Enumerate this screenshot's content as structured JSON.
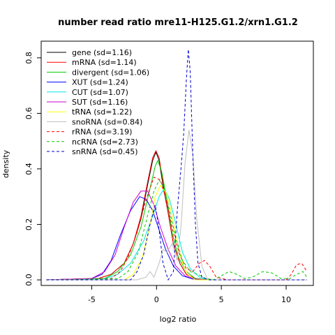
{
  "chart_data": {
    "type": "line",
    "title": "number read ratio mre11-H125.G1.2/xrn1.G1.2",
    "xlabel": "log2 ratio",
    "ylabel": "density",
    "xlim": [
      -8.9,
      12.1
    ],
    "ylim": [
      -0.02,
      0.86
    ],
    "x_ticks": [
      -5,
      0,
      5,
      10
    ],
    "x_tick_labels": [
      "-5",
      "0",
      "5",
      "10"
    ],
    "y_ticks": [
      0.0,
      0.2,
      0.4,
      0.6,
      0.8
    ],
    "y_tick_labels": [
      "0.0",
      "0.2",
      "0.4",
      "0.6",
      "0.8"
    ],
    "grid": false,
    "legend_position": "top-left",
    "series": [
      {
        "name": "gene (sd=1.16)",
        "color": "#000000",
        "dash": "solid",
        "points": [
          [
            -8.5,
            0
          ],
          [
            -4.5,
            0.005
          ],
          [
            -3.5,
            0.02
          ],
          [
            -2.5,
            0.06
          ],
          [
            -1.8,
            0.13
          ],
          [
            -1.2,
            0.22
          ],
          [
            -0.7,
            0.34
          ],
          [
            -0.3,
            0.43
          ],
          [
            -0.05,
            0.46
          ],
          [
            0.2,
            0.43
          ],
          [
            0.5,
            0.34
          ],
          [
            0.9,
            0.24
          ],
          [
            1.3,
            0.13
          ],
          [
            1.8,
            0.06
          ],
          [
            2.3,
            0.02
          ],
          [
            3.0,
            0.005
          ],
          [
            4,
            0
          ],
          [
            11.6,
            0
          ]
        ]
      },
      {
        "name": "mRNA (sd=1.14)",
        "color": "#ff0000",
        "dash": "solid",
        "points": [
          [
            -8.5,
            0
          ],
          [
            -4.5,
            0.005
          ],
          [
            -3.5,
            0.02
          ],
          [
            -2.5,
            0.06
          ],
          [
            -1.8,
            0.13
          ],
          [
            -1.2,
            0.23
          ],
          [
            -0.7,
            0.35
          ],
          [
            -0.3,
            0.44
          ],
          [
            -0.05,
            0.465
          ],
          [
            0.2,
            0.44
          ],
          [
            0.5,
            0.35
          ],
          [
            0.9,
            0.24
          ],
          [
            1.3,
            0.13
          ],
          [
            1.8,
            0.06
          ],
          [
            2.3,
            0.02
          ],
          [
            3.0,
            0.005
          ],
          [
            4,
            0
          ],
          [
            11.6,
            0
          ]
        ]
      },
      {
        "name": "divergent (sd=1.06)",
        "color": "#00cc00",
        "dash": "solid",
        "points": [
          [
            -8.5,
            0
          ],
          [
            -4.0,
            0.005
          ],
          [
            -3.0,
            0.03
          ],
          [
            -2.0,
            0.09
          ],
          [
            -1.2,
            0.19
          ],
          [
            -0.5,
            0.33
          ],
          [
            -0.1,
            0.41
          ],
          [
            0.1,
            0.43
          ],
          [
            0.4,
            0.39
          ],
          [
            0.8,
            0.29
          ],
          [
            1.2,
            0.17
          ],
          [
            1.7,
            0.08
          ],
          [
            2.3,
            0.03
          ],
          [
            3.0,
            0.005
          ],
          [
            4,
            0
          ],
          [
            11.6,
            0
          ]
        ]
      },
      {
        "name": "XUT (sd=1.24)",
        "color": "#0000ff",
        "dash": "solid",
        "points": [
          [
            -8.5,
            0
          ],
          [
            -5.0,
            0.005
          ],
          [
            -4.2,
            0.02
          ],
          [
            -3.5,
            0.07
          ],
          [
            -2.8,
            0.16
          ],
          [
            -2.0,
            0.25
          ],
          [
            -1.3,
            0.3
          ],
          [
            -0.8,
            0.29
          ],
          [
            -0.3,
            0.25
          ],
          [
            0.2,
            0.18
          ],
          [
            0.7,
            0.11
          ],
          [
            1.3,
            0.05
          ],
          [
            2.0,
            0.015
          ],
          [
            2.8,
            0.003
          ],
          [
            4,
            0
          ],
          [
            11.6,
            0
          ]
        ]
      },
      {
        "name": "CUT (sd=1.07)",
        "color": "#00e5e5",
        "dash": "solid",
        "points": [
          [
            -8.5,
            0
          ],
          [
            -4.0,
            0.004
          ],
          [
            -3.0,
            0.02
          ],
          [
            -2.0,
            0.06
          ],
          [
            -1.0,
            0.14
          ],
          [
            -0.3,
            0.23
          ],
          [
            0.2,
            0.3
          ],
          [
            0.6,
            0.33
          ],
          [
            1.0,
            0.29
          ],
          [
            1.5,
            0.2
          ],
          [
            2.0,
            0.1
          ],
          [
            2.6,
            0.04
          ],
          [
            3.3,
            0.01
          ],
          [
            4,
            0
          ],
          [
            11.6,
            0
          ]
        ]
      },
      {
        "name": "SUT (sd=1.16)",
        "color": "#cc00cc",
        "dash": "solid",
        "points": [
          [
            -8.5,
            0
          ],
          [
            -5.0,
            0.005
          ],
          [
            -4.0,
            0.03
          ],
          [
            -3.2,
            0.09
          ],
          [
            -2.5,
            0.19
          ],
          [
            -1.8,
            0.28
          ],
          [
            -1.2,
            0.32
          ],
          [
            -0.7,
            0.32
          ],
          [
            -0.2,
            0.27
          ],
          [
            0.3,
            0.19
          ],
          [
            0.9,
            0.11
          ],
          [
            1.5,
            0.05
          ],
          [
            2.2,
            0.015
          ],
          [
            3.0,
            0.003
          ],
          [
            4,
            0
          ],
          [
            11.6,
            0
          ]
        ]
      },
      {
        "name": "tRNA (sd=1.22)",
        "color": "#ffff00",
        "dash": "solid",
        "points": [
          [
            -8.5,
            0
          ],
          [
            -2.5,
            0.0
          ],
          [
            -1.8,
            0.02
          ],
          [
            -1.1,
            0.08
          ],
          [
            -0.5,
            0.2
          ],
          [
            -0.1,
            0.3
          ],
          [
            0.3,
            0.34
          ],
          [
            0.8,
            0.31
          ],
          [
            1.2,
            0.23
          ],
          [
            1.6,
            0.13
          ],
          [
            2.0,
            0.06
          ],
          [
            2.4,
            0.02
          ],
          [
            3.0,
            0.0
          ],
          [
            11.6,
            0
          ]
        ]
      },
      {
        "name": "snoRNA (sd=0.84)",
        "color": "#bebebe",
        "dash": "solid",
        "points": [
          [
            -8.5,
            0
          ],
          [
            -1.5,
            0.0
          ],
          [
            -0.8,
            0.01
          ],
          [
            -0.5,
            0.03
          ],
          [
            -0.2,
            0.01
          ],
          [
            0.2,
            0.06
          ],
          [
            0.5,
            0.11
          ],
          [
            0.8,
            0.1
          ],
          [
            1.2,
            0.13
          ],
          [
            1.6,
            0.07
          ],
          [
            1.9,
            0.2
          ],
          [
            2.2,
            0.42
          ],
          [
            2.5,
            0.54
          ],
          [
            2.8,
            0.45
          ],
          [
            3.1,
            0.22
          ],
          [
            3.5,
            0.05
          ],
          [
            3.9,
            0.005
          ],
          [
            4.4,
            0
          ],
          [
            11.6,
            0
          ]
        ]
      },
      {
        "name": "rRNA (sd=3.19)",
        "color": "#ff0000",
        "dash": "dashed",
        "points": [
          [
            -8.5,
            0
          ],
          [
            -3.5,
            0.005
          ],
          [
            -2.8,
            0.03
          ],
          [
            -2.2,
            0.08
          ],
          [
            -1.5,
            0.17
          ],
          [
            -0.8,
            0.29
          ],
          [
            -0.2,
            0.37
          ],
          [
            0.3,
            0.36
          ],
          [
            0.8,
            0.28
          ],
          [
            1.3,
            0.17
          ],
          [
            1.8,
            0.09
          ],
          [
            2.3,
            0.04
          ],
          [
            2.8,
            0.03
          ],
          [
            3.3,
            0.06
          ],
          [
            3.7,
            0.07
          ],
          [
            4.1,
            0.05
          ],
          [
            4.6,
            0.01
          ],
          [
            5.5,
            0
          ],
          [
            10.0,
            0
          ],
          [
            10.4,
            0.02
          ],
          [
            10.8,
            0.055
          ],
          [
            11.2,
            0.06
          ],
          [
            11.6,
            0.03
          ]
        ]
      },
      {
        "name": "ncRNA (sd=2.73)",
        "color": "#00cc00",
        "dash": "dashed",
        "points": [
          [
            -8.5,
            0
          ],
          [
            -3.0,
            0.004
          ],
          [
            -2.2,
            0.03
          ],
          [
            -1.4,
            0.1
          ],
          [
            -0.7,
            0.23
          ],
          [
            -0.2,
            0.32
          ],
          [
            0.2,
            0.36
          ],
          [
            0.6,
            0.33
          ],
          [
            1.0,
            0.25
          ],
          [
            1.5,
            0.15
          ],
          [
            2.0,
            0.07
          ],
          [
            2.6,
            0.03
          ],
          [
            3.2,
            0.02
          ],
          [
            3.8,
            0.005
          ],
          [
            4.4,
            0.0
          ],
          [
            5.0,
            0.015
          ],
          [
            5.6,
            0.03
          ],
          [
            6.2,
            0.02
          ],
          [
            6.8,
            0.005
          ],
          [
            7.4,
            0.01
          ],
          [
            8.2,
            0.03
          ],
          [
            8.9,
            0.025
          ],
          [
            9.6,
            0.005
          ],
          [
            10.3,
            0.005
          ],
          [
            10.8,
            0.02
          ],
          [
            11.3,
            0.03
          ],
          [
            11.6,
            0.01
          ]
        ]
      },
      {
        "name": "snRNA (sd=0.45)",
        "color": "#0000cc",
        "dash": "dashed",
        "points": [
          [
            -8.5,
            0
          ],
          [
            -2.0,
            0.0
          ],
          [
            -1.5,
            0.03
          ],
          [
            -1.0,
            0.09
          ],
          [
            -0.5,
            0.2
          ],
          [
            -0.1,
            0.27
          ],
          [
            0.2,
            0.18
          ],
          [
            0.5,
            0.06
          ],
          [
            0.9,
            0.0
          ],
          [
            1.3,
            0.03
          ],
          [
            1.6,
            0.25
          ],
          [
            1.9,
            0.41
          ],
          [
            2.1,
            0.53
          ],
          [
            2.3,
            0.72
          ],
          [
            2.45,
            0.83
          ],
          [
            2.6,
            0.75
          ],
          [
            2.8,
            0.45
          ],
          [
            3.0,
            0.2
          ],
          [
            3.2,
            0.06
          ],
          [
            3.5,
            0.01
          ],
          [
            4,
            0
          ],
          [
            11.6,
            0
          ]
        ]
      }
    ]
  }
}
